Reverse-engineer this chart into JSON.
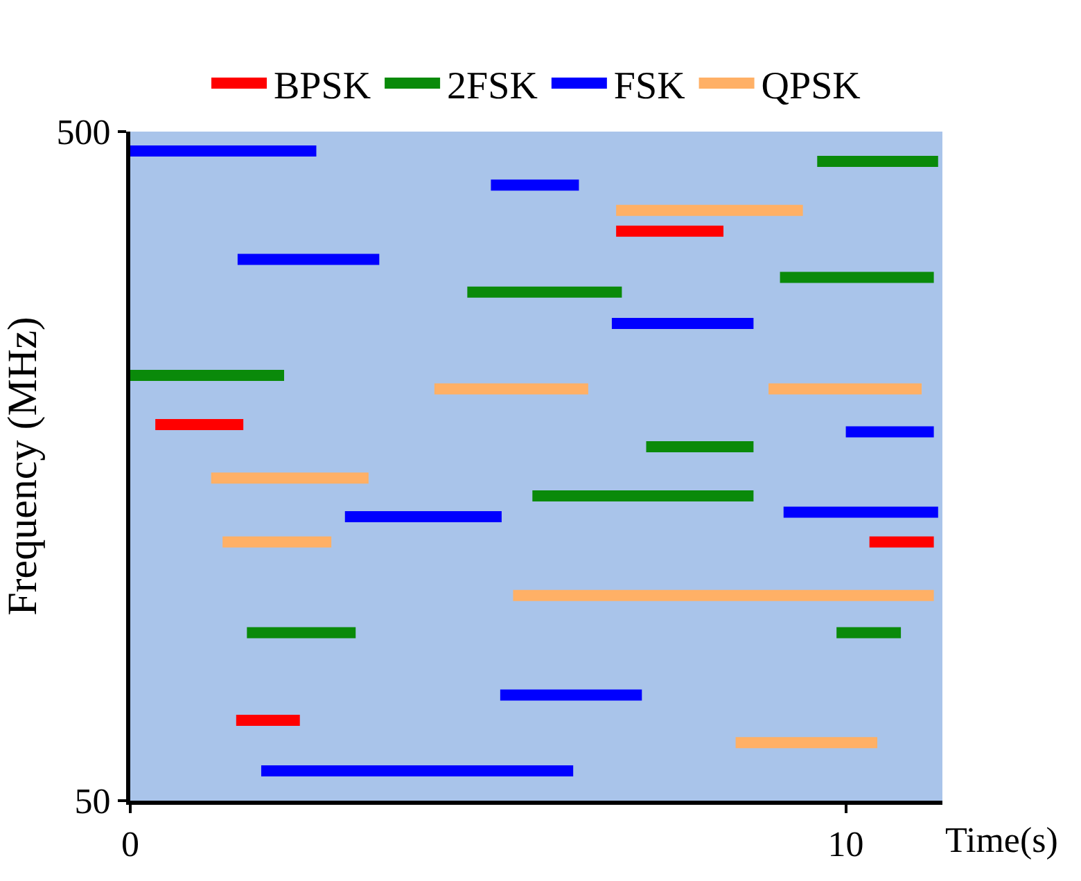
{
  "chart_data": {
    "type": "line",
    "xlabel": "Time(s)",
    "ylabel": "Frequency (MHz)",
    "xlim": [
      0,
      11.35
    ],
    "xticks": [
      0,
      10
    ],
    "ylim": [
      50,
      500
    ],
    "yticks": [
      50,
      500
    ],
    "grid": false,
    "legend": "top",
    "marker": "none",
    "line_style": "solid",
    "series": [
      {
        "name": "BPSK",
        "color": "#ff0000",
        "x": [
          6.79,
          8.29,
          null,
          0.35,
          1.58,
          null,
          10.33,
          11.23,
          null,
          1.48,
          2.37
        ],
        "values": [
          433,
          433,
          null,
          303,
          303,
          null,
          224,
          224,
          null,
          104,
          104
        ]
      },
      {
        "name": "2FSK",
        "color": "#0a8a0a",
        "x": [
          9.6,
          11.29,
          null,
          4.71,
          6.87,
          null,
          9.08,
          11.23,
          null,
          0,
          2.15,
          null,
          7.21,
          8.71,
          null,
          5.62,
          8.71,
          null,
          1.63,
          3.15,
          null,
          9.87,
          10.77
        ],
        "values": [
          480,
          480,
          null,
          392,
          392,
          null,
          402,
          402,
          null,
          336,
          336,
          null,
          288,
          288,
          null,
          255,
          255,
          null,
          163,
          163,
          null,
          163,
          163
        ]
      },
      {
        "name": "FSK",
        "color": "#0000ff",
        "x": [
          0,
          2.6,
          null,
          5.04,
          6.27,
          null,
          1.5,
          3.48,
          null,
          6.73,
          8.71,
          null,
          10,
          11.23,
          null,
          3.0,
          5.19,
          null,
          9.13,
          11.29,
          null,
          5.17,
          7.15,
          null,
          1.83,
          6.19
        ],
        "values": [
          487,
          487,
          null,
          464,
          464,
          null,
          414,
          414,
          null,
          371,
          371,
          null,
          298,
          298,
          null,
          241,
          241,
          null,
          244,
          244,
          null,
          121,
          121,
          null,
          70,
          70
        ]
      },
      {
        "name": "QPSK",
        "color": "#ffb066",
        "x": [
          6.79,
          9.4,
          null,
          4.25,
          6.4,
          null,
          8.92,
          11.06,
          null,
          1.13,
          3.33,
          null,
          1.29,
          2.81,
          null,
          5.35,
          11.23,
          null,
          8.46,
          10.44
        ],
        "values": [
          447,
          447,
          null,
          327,
          327,
          null,
          327,
          327,
          null,
          267,
          267,
          null,
          224,
          224,
          null,
          188,
          188,
          null,
          89,
          89
        ]
      }
    ]
  }
}
